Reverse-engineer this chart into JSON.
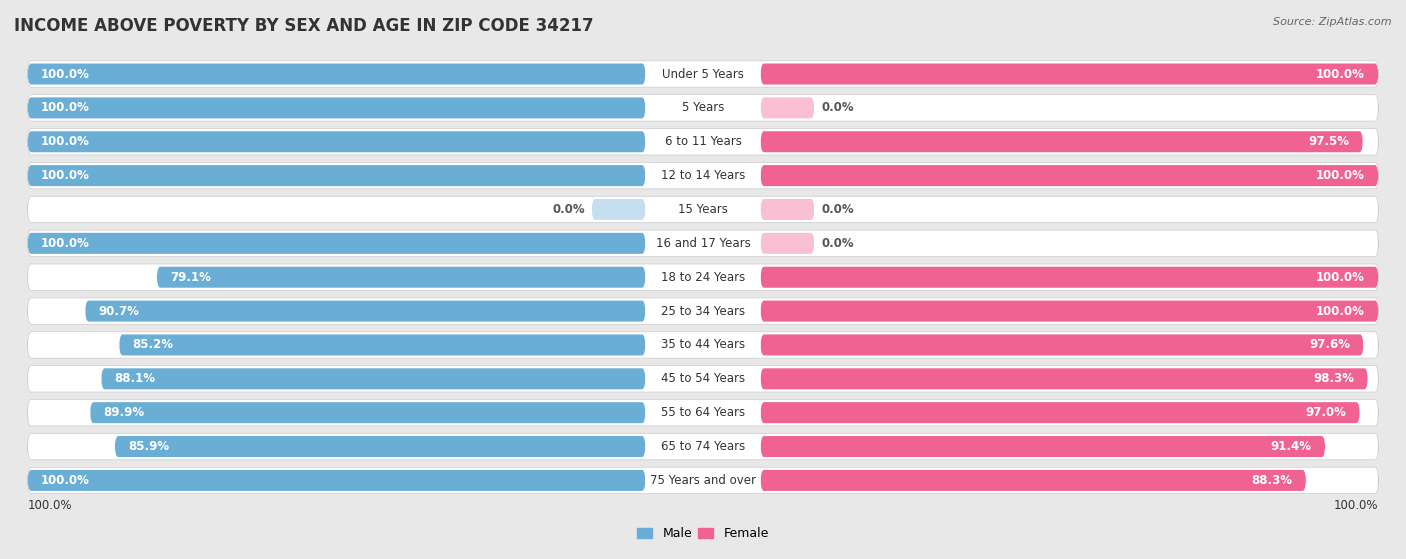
{
  "title": "INCOME ABOVE POVERTY BY SEX AND AGE IN ZIP CODE 34217",
  "source": "Source: ZipAtlas.com",
  "categories": [
    "Under 5 Years",
    "5 Years",
    "6 to 11 Years",
    "12 to 14 Years",
    "15 Years",
    "16 and 17 Years",
    "18 to 24 Years",
    "25 to 34 Years",
    "35 to 44 Years",
    "45 to 54 Years",
    "55 to 64 Years",
    "65 to 74 Years",
    "75 Years and over"
  ],
  "male_values": [
    100.0,
    100.0,
    100.0,
    100.0,
    0.0,
    100.0,
    79.1,
    90.7,
    85.2,
    88.1,
    89.9,
    85.9,
    100.0
  ],
  "female_values": [
    100.0,
    0.0,
    97.5,
    100.0,
    0.0,
    0.0,
    100.0,
    100.0,
    97.6,
    98.3,
    97.0,
    91.4,
    88.3
  ],
  "male_color": "#6aaed6",
  "female_color": "#f06292",
  "male_color_light": "#c6dff0",
  "female_color_light": "#f9c0d4",
  "row_bg_color": "#ffffff",
  "fig_bg_color": "#e8e8e8",
  "title_fontsize": 12,
  "label_fontsize": 8.5,
  "source_fontsize": 8,
  "legend_fontsize": 9,
  "bottom_label_text": "100.0%"
}
